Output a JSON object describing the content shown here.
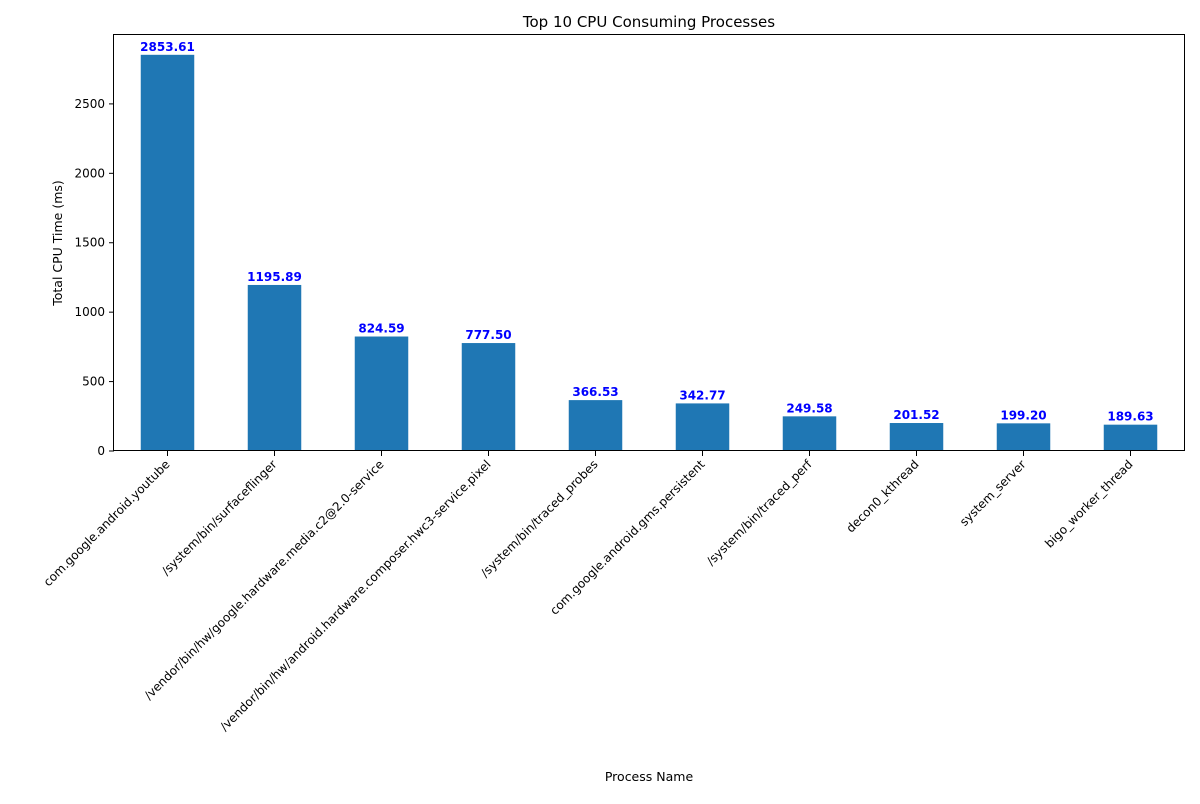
{
  "chart_data": {
    "type": "bar",
    "title": "Top 10 CPU Consuming Processes",
    "xlabel": "Process Name",
    "ylabel": "Total CPU Time (ms)",
    "categories": [
      "com.google.android.youtube",
      "/system/bin/surfaceflinger",
      "/vendor/bin/hw/google.hardware.media.c2@2.0-service",
      "/vendor/bin/hw/android.hardware.composer.hwc3-service.pixel",
      "/system/bin/traced_probes",
      "com.google.android.gms.persistent",
      "/system/bin/traced_perf",
      "decon0_kthread",
      "system_server",
      "bigo_worker_thread"
    ],
    "values": [
      2853.61,
      1195.89,
      824.59,
      777.5,
      366.53,
      342.77,
      249.58,
      201.52,
      199.2,
      189.63
    ],
    "data_labels": [
      "2853.61",
      "1195.89",
      "824.59",
      "777.50",
      "366.53",
      "342.77",
      "249.58",
      "201.52",
      "199.20",
      "189.63"
    ],
    "yticks": [
      0,
      500,
      1000,
      1500,
      2000,
      2500
    ],
    "ylim": [
      0,
      2996.29
    ],
    "grid": false,
    "legend": "none",
    "colors": {
      "bar": "#1f77b4",
      "data_label": "#0000ff",
      "axis": "#000000"
    }
  }
}
